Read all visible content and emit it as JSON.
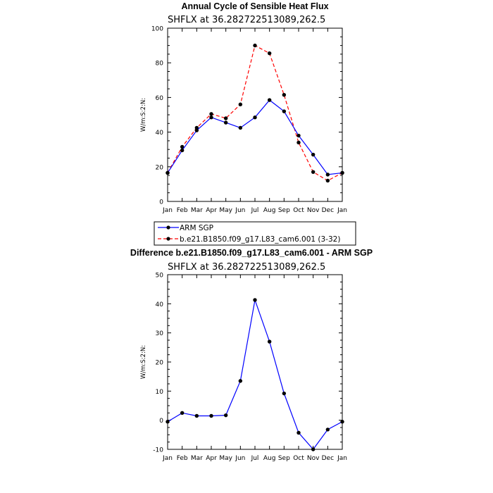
{
  "chart_data": [
    {
      "type": "line",
      "title": "Annual Cycle of Sensible Heat Flux",
      "subtitle": "SHFLX at 36.282722513089,262.5",
      "ylabel": "W/m:S:2:N:",
      "xlabel": "",
      "categories": [
        "Jan",
        "Feb",
        "Mar",
        "Apr",
        "May",
        "Jun",
        "Jul",
        "Aug",
        "Sep",
        "Oct",
        "Nov",
        "Dec",
        "Jan"
      ],
      "ylim": [
        0,
        100
      ],
      "yticks": [
        0,
        20,
        40,
        60,
        80,
        100
      ],
      "series": [
        {
          "name": "ARM SGP",
          "color": "#0000ff",
          "dash": "solid",
          "values": [
            16.5,
            29.5,
            41.0,
            48.5,
            45.5,
            42.5,
            48.5,
            58.5,
            52.0,
            38.0,
            27.0,
            15.5,
            16.5
          ]
        },
        {
          "name": "b.e21.B1850.f09_g17.L83_cam6.001 (3-32)",
          "color": "#ff0000",
          "dash": "dashed",
          "values": [
            16.5,
            31.5,
            42.5,
            50.5,
            48.0,
            56.0,
            90.0,
            85.5,
            61.5,
            34.0,
            17.0,
            12.0,
            16.5
          ]
        }
      ],
      "legend": "below"
    },
    {
      "type": "line",
      "title": "Difference b.e21.B1850.f09_g17.L83_cam6.001 - ARM SGP",
      "subtitle": "SHFLX at 36.282722513089,262.5",
      "ylabel": "W/m:S:2:N:",
      "xlabel": "",
      "categories": [
        "Jan",
        "Feb",
        "Mar",
        "Apr",
        "May",
        "Jun",
        "Jul",
        "Aug",
        "Sep",
        "Oct",
        "Nov",
        "Dec",
        "Jan"
      ],
      "ylim": [
        -10,
        50
      ],
      "yticks": [
        -10,
        0,
        10,
        20,
        30,
        40,
        50
      ],
      "series": [
        {
          "color": "#0000ff",
          "dash": "solid",
          "values": [
            -0.5,
            2.5,
            1.5,
            1.5,
            1.7,
            13.5,
            41.3,
            27.0,
            9.2,
            -4.3,
            -10.0,
            -3.2,
            -0.5
          ]
        }
      ]
    }
  ]
}
